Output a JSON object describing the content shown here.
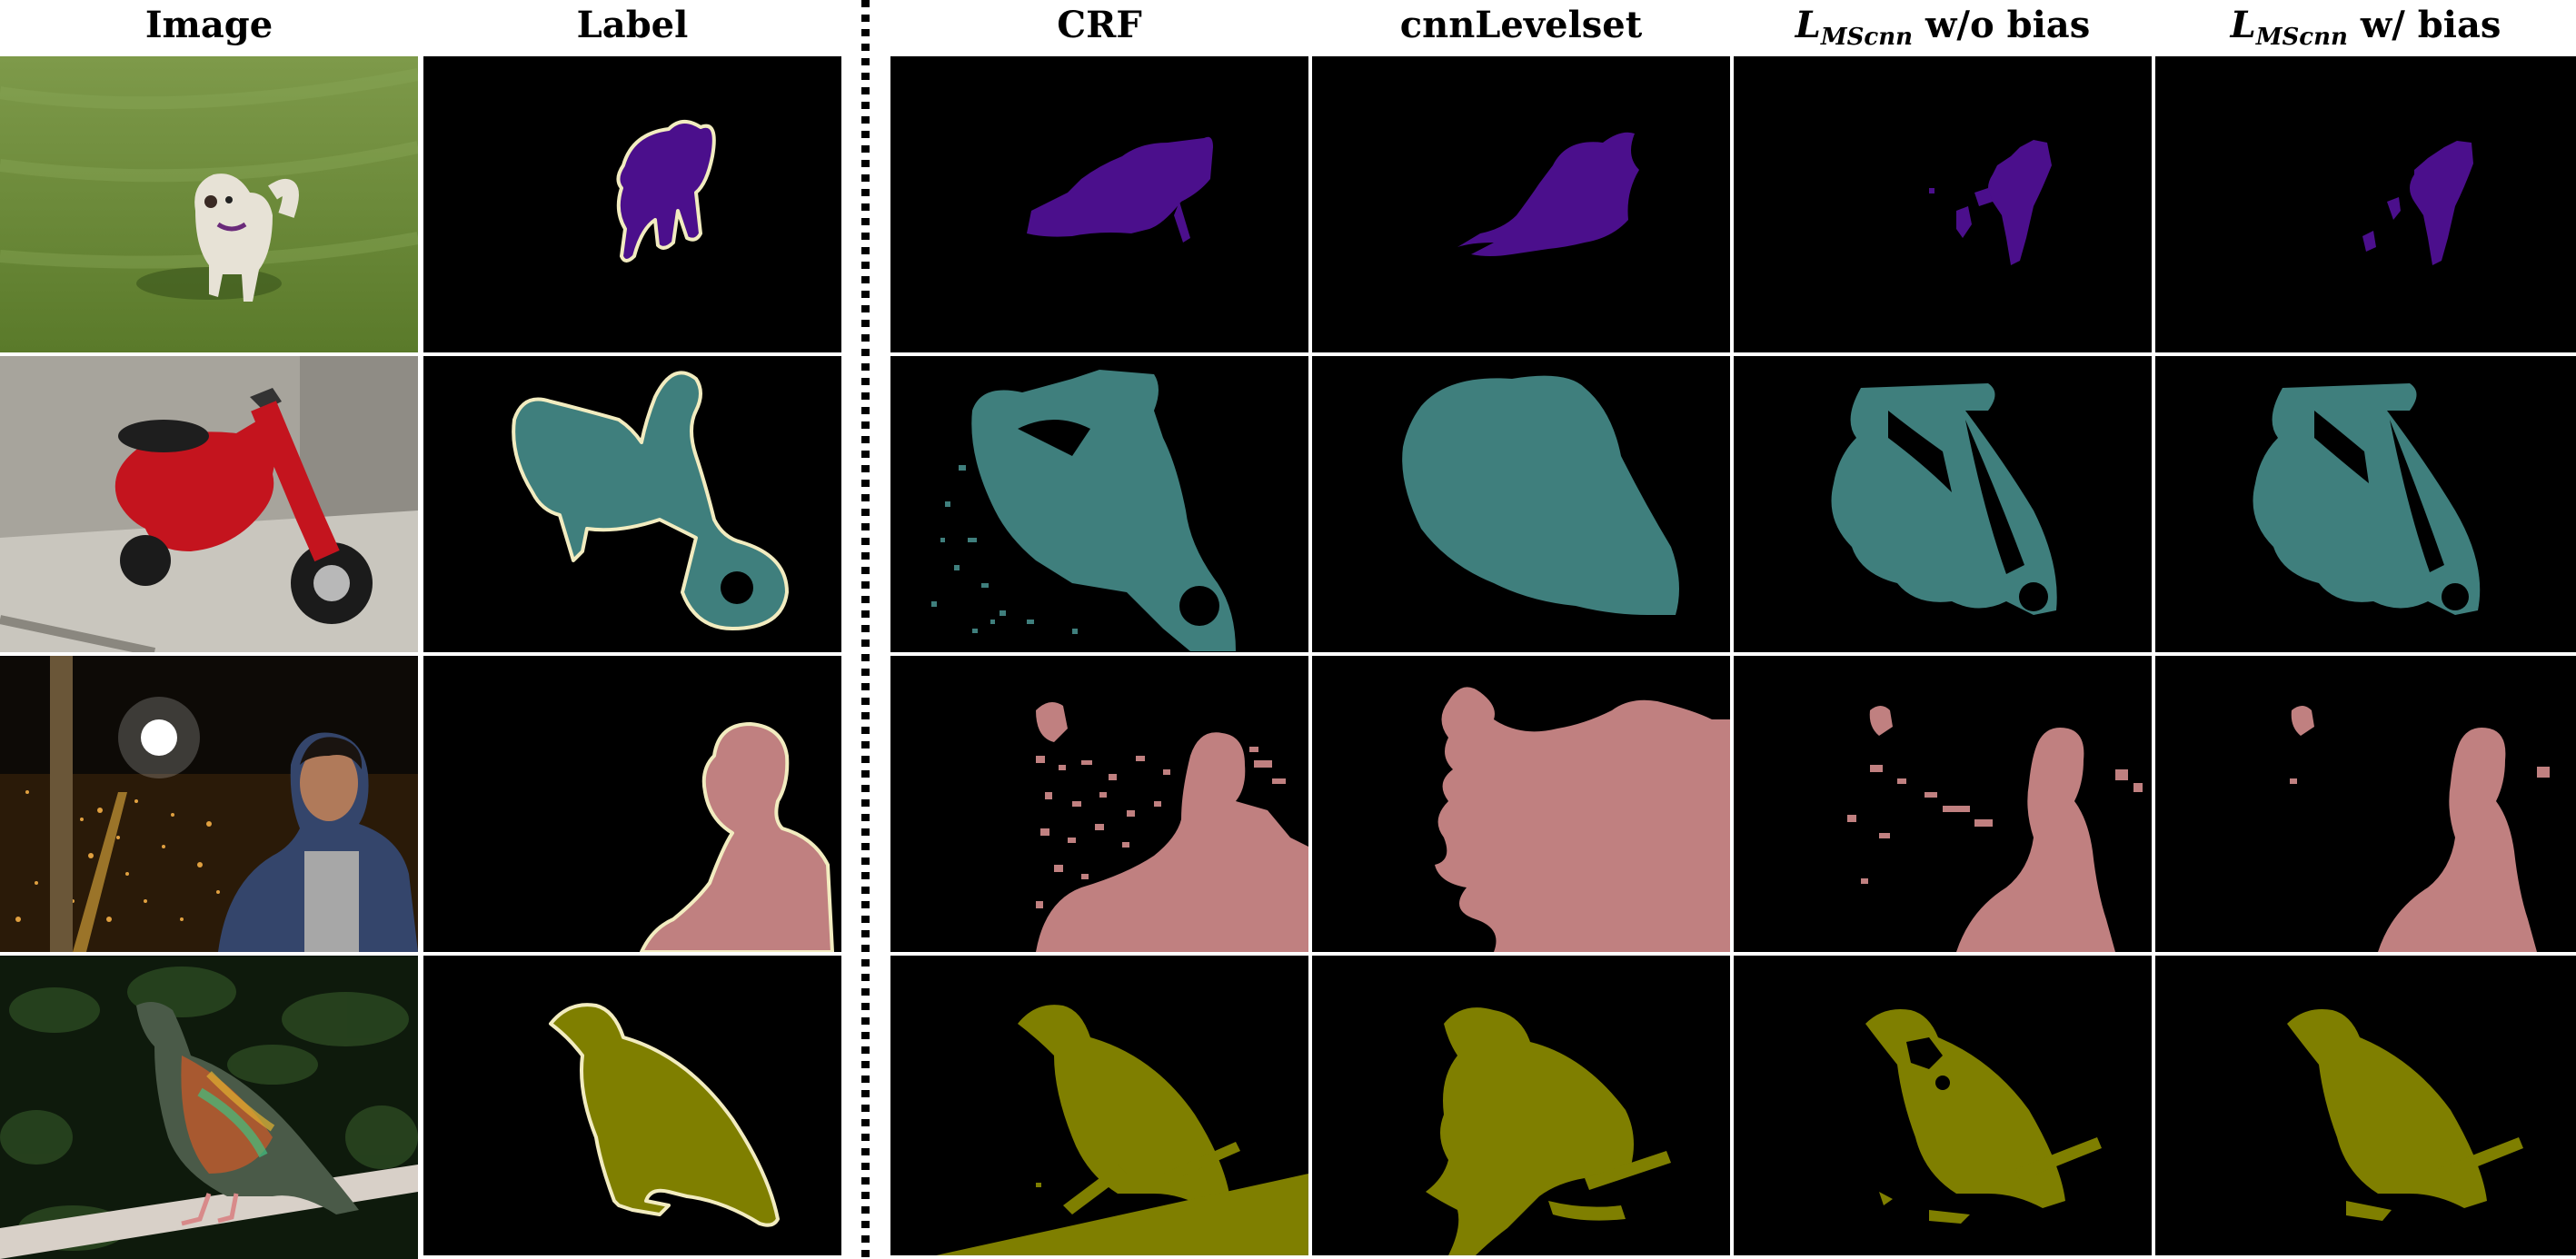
{
  "headers": {
    "image": "Image",
    "label": "Label",
    "crf": "CRF",
    "cnn": "cnnLevelset",
    "wo_L": "L",
    "wo_sub": "MScnn",
    "wo_rest": " w/o bias",
    "wb_L": "L",
    "wb_sub": "MScnn",
    "wb_rest": " w/ bias"
  },
  "rows": [
    "dog",
    "scooter",
    "person",
    "bird"
  ],
  "colors": {
    "dog": "#4b0f8c",
    "scooter": "#3f7f7d",
    "person": "#c08080",
    "bird": "#7f7f00",
    "outline": "#f2ecc0"
  }
}
